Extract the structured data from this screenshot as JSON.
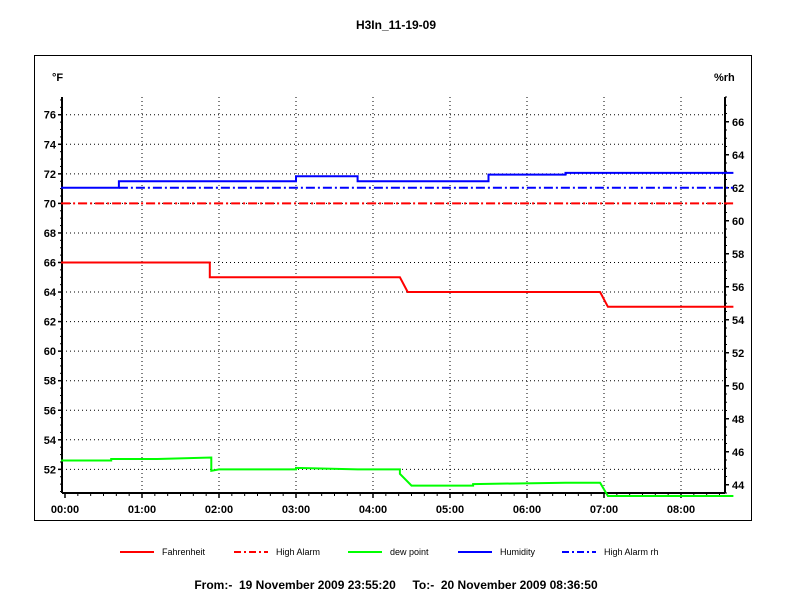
{
  "chart_data": {
    "type": "line",
    "title": "H3In_11-19-09",
    "left_unit": "°F",
    "right_unit": "%rh",
    "left_ylim": [
      50.4,
      77.2
    ],
    "right_ylim": [
      43.5,
      67.5
    ],
    "left_ticks": [
      52,
      54,
      56,
      58,
      60,
      62,
      64,
      66,
      68,
      70,
      72,
      74,
      76
    ],
    "right_ticks": [
      44,
      46,
      48,
      50,
      52,
      54,
      56,
      58,
      60,
      62,
      64,
      66
    ],
    "x_ticks": [
      "00:00",
      "01:00",
      "02:00",
      "03:00",
      "04:00",
      "05:00",
      "06:00",
      "07:00",
      "08:00"
    ],
    "x_range_hours": [
      -0.05,
      8.68
    ],
    "grid": true,
    "legend_position": "bottom",
    "series": [
      {
        "name": "Fahrenheit",
        "axis": "left",
        "color": "#ff0000",
        "style": "solid",
        "x": [
          -0.05,
          1.88,
          1.88,
          1.95,
          2.0,
          4.35,
          4.45,
          4.5,
          6.95,
          7.05,
          8.68
        ],
        "y": [
          66,
          66,
          65,
          65,
          65,
          65,
          64,
          64,
          64,
          63,
          63
        ]
      },
      {
        "name": "High Alarm",
        "axis": "left",
        "color": "#ff0000",
        "style": "dashdot",
        "x": [
          -0.05,
          8.68
        ],
        "y": [
          70,
          70
        ]
      },
      {
        "name": "dew point",
        "axis": "left",
        "color": "#00ff00",
        "style": "solid",
        "x": [
          -0.05,
          0.6,
          0.6,
          1.2,
          1.9,
          1.9,
          2.0,
          3.0,
          3.0,
          3.8,
          4.35,
          4.35,
          4.5,
          5.3,
          5.3,
          6.5,
          6.95,
          7.05,
          8.68
        ],
        "y": [
          52.6,
          52.6,
          52.7,
          52.7,
          52.8,
          51.9,
          52.0,
          52.0,
          52.1,
          52.0,
          52.0,
          51.7,
          50.9,
          50.9,
          51.0,
          51.1,
          51.1,
          50.2,
          50.2
        ]
      },
      {
        "name": "Humidity",
        "axis": "right",
        "color": "#0000ff",
        "style": "solid",
        "x": [
          -0.05,
          0.7,
          0.7,
          3.0,
          3.0,
          3.8,
          3.8,
          5.5,
          5.5,
          6.5,
          6.5,
          8.68
        ],
        "y": [
          62.0,
          62.0,
          62.4,
          62.4,
          62.7,
          62.7,
          62.4,
          62.4,
          62.8,
          62.8,
          62.9,
          62.9
        ]
      },
      {
        "name": "High Alarm rh",
        "axis": "right",
        "color": "#0000ff",
        "style": "dashdot",
        "x": [
          0.7,
          8.68
        ],
        "y": [
          62,
          62
        ]
      }
    ]
  },
  "footer": {
    "text": "From:-  19 November 2009 23:55:20     To:-  20 November 2009 08:36:50"
  }
}
